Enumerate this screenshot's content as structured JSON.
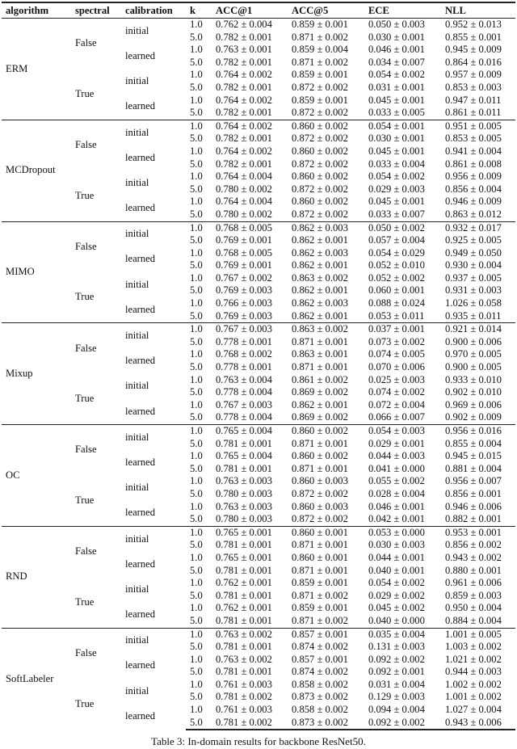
{
  "headers": [
    "algorithm",
    "spectral",
    "calibration",
    "k",
    "ACC@1",
    "ACC@5",
    "ECE",
    "NLL"
  ],
  "caption": "Table 3: In-domain results for backbone ResNet50.",
  "blocks": [
    {
      "algorithm": "ERM",
      "spectral": [
        {
          "value": "False",
          "calibration": [
            {
              "label": "initial",
              "rows": [
                [
                  "1.0",
                  "0.762 ± 0.004",
                  "0.859 ± 0.001",
                  "0.050 ± 0.003",
                  "0.952 ± 0.013"
                ],
                [
                  "5.0",
                  "0.782 ± 0.001",
                  "0.871 ± 0.002",
                  "0.030 ± 0.001",
                  "0.855 ± 0.001"
                ]
              ]
            },
            {
              "label": "learned",
              "rows": [
                [
                  "1.0",
                  "0.763 ± 0.001",
                  "0.859 ± 0.004",
                  "0.046 ± 0.001",
                  "0.945 ± 0.009"
                ],
                [
                  "5.0",
                  "0.782 ± 0.001",
                  "0.871 ± 0.002",
                  "0.034 ± 0.007",
                  "0.864 ± 0.016"
                ]
              ]
            }
          ]
        },
        {
          "value": "True",
          "calibration": [
            {
              "label": "initial",
              "rows": [
                [
                  "1.0",
                  "0.764 ± 0.002",
                  "0.859 ± 0.001",
                  "0.054 ± 0.002",
                  "0.957 ± 0.009"
                ],
                [
                  "5.0",
                  "0.782 ± 0.001",
                  "0.872 ± 0.002",
                  "0.031 ± 0.001",
                  "0.853 ± 0.003"
                ]
              ]
            },
            {
              "label": "learned",
              "rows": [
                [
                  "1.0",
                  "0.764 ± 0.002",
                  "0.859 ± 0.001",
                  "0.045 ± 0.001",
                  "0.947 ± 0.011"
                ],
                [
                  "5.0",
                  "0.782 ± 0.001",
                  "0.872 ± 0.002",
                  "0.033 ± 0.005",
                  "0.861 ± 0.011"
                ]
              ]
            }
          ]
        }
      ]
    },
    {
      "algorithm": "MCDropout",
      "spectral": [
        {
          "value": "False",
          "calibration": [
            {
              "label": "initial",
              "rows": [
                [
                  "1.0",
                  "0.764 ± 0.002",
                  "0.860 ± 0.002",
                  "0.054 ± 0.001",
                  "0.951 ± 0.005"
                ],
                [
                  "5.0",
                  "0.782 ± 0.001",
                  "0.872 ± 0.002",
                  "0.030 ± 0.001",
                  "0.853 ± 0.005"
                ]
              ]
            },
            {
              "label": "learned",
              "rows": [
                [
                  "1.0",
                  "0.764 ± 0.002",
                  "0.860 ± 0.002",
                  "0.045 ± 0.001",
                  "0.941 ± 0.004"
                ],
                [
                  "5.0",
                  "0.782 ± 0.001",
                  "0.872 ± 0.002",
                  "0.033 ± 0.004",
                  "0.861 ± 0.008"
                ]
              ]
            }
          ]
        },
        {
          "value": "True",
          "calibration": [
            {
              "label": "initial",
              "rows": [
                [
                  "1.0",
                  "0.764 ± 0.004",
                  "0.860 ± 0.002",
                  "0.054 ± 0.002",
                  "0.956 ± 0.009"
                ],
                [
                  "5.0",
                  "0.780 ± 0.002",
                  "0.872 ± 0.002",
                  "0.029 ± 0.003",
                  "0.856 ± 0.004"
                ]
              ]
            },
            {
              "label": "learned",
              "rows": [
                [
                  "1.0",
                  "0.764 ± 0.004",
                  "0.860 ± 0.002",
                  "0.045 ± 0.001",
                  "0.946 ± 0.009"
                ],
                [
                  "5.0",
                  "0.780 ± 0.002",
                  "0.872 ± 0.002",
                  "0.033 ± 0.007",
                  "0.863 ± 0.012"
                ]
              ]
            }
          ]
        }
      ]
    },
    {
      "algorithm": "MIMO",
      "spectral": [
        {
          "value": "False",
          "calibration": [
            {
              "label": "initial",
              "rows": [
                [
                  "1.0",
                  "0.768 ± 0.005",
                  "0.862 ± 0.003",
                  "0.050 ± 0.002",
                  "0.932 ± 0.017"
                ],
                [
                  "5.0",
                  "0.769 ± 0.001",
                  "0.862 ± 0.001",
                  "0.057 ± 0.004",
                  "0.925 ± 0.005"
                ]
              ]
            },
            {
              "label": "learned",
              "rows": [
                [
                  "1.0",
                  "0.768 ± 0.005",
                  "0.862 ± 0.003",
                  "0.054 ± 0.029",
                  "0.949 ± 0.050"
                ],
                [
                  "5.0",
                  "0.769 ± 0.001",
                  "0.862 ± 0.001",
                  "0.052 ± 0.010",
                  "0.930 ± 0.004"
                ]
              ]
            }
          ]
        },
        {
          "value": "True",
          "calibration": [
            {
              "label": "initial",
              "rows": [
                [
                  "1.0",
                  "0.767 ± 0.002",
                  "0.863 ± 0.002",
                  "0.052 ± 0.002",
                  "0.937 ± 0.005"
                ],
                [
                  "5.0",
                  "0.769 ± 0.003",
                  "0.862 ± 0.001",
                  "0.060 ± 0.001",
                  "0.931 ± 0.003"
                ]
              ]
            },
            {
              "label": "learned",
              "rows": [
                [
                  "1.0",
                  "0.766 ± 0.003",
                  "0.862 ± 0.003",
                  "0.088 ± 0.024",
                  "1.026 ± 0.058"
                ],
                [
                  "5.0",
                  "0.769 ± 0.003",
                  "0.862 ± 0.001",
                  "0.053 ± 0.011",
                  "0.935 ± 0.011"
                ]
              ]
            }
          ]
        }
      ]
    },
    {
      "algorithm": "Mixup",
      "spectral": [
        {
          "value": "False",
          "calibration": [
            {
              "label": "initial",
              "rows": [
                [
                  "1.0",
                  "0.767 ± 0.003",
                  "0.863 ± 0.002",
                  "0.037 ± 0.001",
                  "0.921 ± 0.014"
                ],
                [
                  "5.0",
                  "0.778 ± 0.001",
                  "0.871 ± 0.001",
                  "0.073 ± 0.002",
                  "0.900 ± 0.006"
                ]
              ]
            },
            {
              "label": "learned",
              "rows": [
                [
                  "1.0",
                  "0.768 ± 0.002",
                  "0.863 ± 0.001",
                  "0.074 ± 0.005",
                  "0.970 ± 0.005"
                ],
                [
                  "5.0",
                  "0.778 ± 0.001",
                  "0.871 ± 0.001",
                  "0.070 ± 0.006",
                  "0.900 ± 0.005"
                ]
              ]
            }
          ]
        },
        {
          "value": "True",
          "calibration": [
            {
              "label": "initial",
              "rows": [
                [
                  "1.0",
                  "0.763 ± 0.004",
                  "0.861 ± 0.002",
                  "0.025 ± 0.003",
                  "0.933 ± 0.010"
                ],
                [
                  "5.0",
                  "0.778 ± 0.004",
                  "0.869 ± 0.002",
                  "0.074 ± 0.002",
                  "0.902 ± 0.010"
                ]
              ]
            },
            {
              "label": "learned",
              "rows": [
                [
                  "1.0",
                  "0.767 ± 0.003",
                  "0.862 ± 0.001",
                  "0.072 ± 0.004",
                  "0.969 ± 0.006"
                ],
                [
                  "5.0",
                  "0.778 ± 0.004",
                  "0.869 ± 0.002",
                  "0.066 ± 0.007",
                  "0.902 ± 0.009"
                ]
              ]
            }
          ]
        }
      ]
    },
    {
      "algorithm": "OC",
      "spectral": [
        {
          "value": "False",
          "calibration": [
            {
              "label": "initial",
              "rows": [
                [
                  "1.0",
                  "0.765 ± 0.004",
                  "0.860 ± 0.002",
                  "0.054 ± 0.003",
                  "0.956 ± 0.016"
                ],
                [
                  "5.0",
                  "0.781 ± 0.001",
                  "0.871 ± 0.001",
                  "0.029 ± 0.001",
                  "0.855 ± 0.004"
                ]
              ]
            },
            {
              "label": "learned",
              "rows": [
                [
                  "1.0",
                  "0.765 ± 0.004",
                  "0.860 ± 0.002",
                  "0.044 ± 0.003",
                  "0.945 ± 0.015"
                ],
                [
                  "5.0",
                  "0.781 ± 0.001",
                  "0.871 ± 0.001",
                  "0.041 ± 0.000",
                  "0.881 ± 0.004"
                ]
              ]
            }
          ]
        },
        {
          "value": "True",
          "calibration": [
            {
              "label": "initial",
              "rows": [
                [
                  "1.0",
                  "0.763 ± 0.003",
                  "0.860 ± 0.003",
                  "0.055 ± 0.002",
                  "0.956 ± 0.007"
                ],
                [
                  "5.0",
                  "0.780 ± 0.003",
                  "0.872 ± 0.002",
                  "0.028 ± 0.004",
                  "0.856 ± 0.001"
                ]
              ]
            },
            {
              "label": "learned",
              "rows": [
                [
                  "1.0",
                  "0.763 ± 0.003",
                  "0.860 ± 0.003",
                  "0.046 ± 0.001",
                  "0.946 ± 0.006"
                ],
                [
                  "5.0",
                  "0.780 ± 0.003",
                  "0.872 ± 0.002",
                  "0.042 ± 0.001",
                  "0.882 ± 0.001"
                ]
              ]
            }
          ]
        }
      ]
    },
    {
      "algorithm": "RND",
      "spectral": [
        {
          "value": "False",
          "calibration": [
            {
              "label": "initial",
              "rows": [
                [
                  "1.0",
                  "0.765 ± 0.001",
                  "0.860 ± 0.001",
                  "0.053 ± 0.000",
                  "0.953 ± 0.001"
                ],
                [
                  "5.0",
                  "0.781 ± 0.001",
                  "0.871 ± 0.001",
                  "0.030 ± 0.003",
                  "0.856 ± 0.002"
                ]
              ]
            },
            {
              "label": "learned",
              "rows": [
                [
                  "1.0",
                  "0.765 ± 0.001",
                  "0.860 ± 0.001",
                  "0.044 ± 0.001",
                  "0.943 ± 0.002"
                ],
                [
                  "5.0",
                  "0.781 ± 0.001",
                  "0.871 ± 0.001",
                  "0.040 ± 0.001",
                  "0.880 ± 0.001"
                ]
              ]
            }
          ]
        },
        {
          "value": "True",
          "calibration": [
            {
              "label": "initial",
              "rows": [
                [
                  "1.0",
                  "0.762 ± 0.001",
                  "0.859 ± 0.001",
                  "0.054 ± 0.002",
                  "0.961 ± 0.006"
                ],
                [
                  "5.0",
                  "0.781 ± 0.001",
                  "0.871 ± 0.002",
                  "0.029 ± 0.002",
                  "0.859 ± 0.003"
                ]
              ]
            },
            {
              "label": "learned",
              "rows": [
                [
                  "1.0",
                  "0.762 ± 0.001",
                  "0.859 ± 0.001",
                  "0.045 ± 0.002",
                  "0.950 ± 0.004"
                ],
                [
                  "5.0",
                  "0.781 ± 0.001",
                  "0.871 ± 0.002",
                  "0.040 ± 0.000",
                  "0.884 ± 0.004"
                ]
              ]
            }
          ]
        }
      ]
    },
    {
      "algorithm": "SoftLabeler",
      "spectral": [
        {
          "value": "False",
          "calibration": [
            {
              "label": "initial",
              "rows": [
                [
                  "1.0",
                  "0.763 ± 0.002",
                  "0.857 ± 0.001",
                  "0.035 ± 0.004",
                  "1.001 ± 0.005"
                ],
                [
                  "5.0",
                  "0.781 ± 0.001",
                  "0.874 ± 0.002",
                  "0.131 ± 0.003",
                  "1.003 ± 0.002"
                ]
              ]
            },
            {
              "label": "learned",
              "rows": [
                [
                  "1.0",
                  "0.763 ± 0.002",
                  "0.857 ± 0.001",
                  "0.092 ± 0.002",
                  "1.021 ± 0.002"
                ],
                [
                  "5.0",
                  "0.781 ± 0.001",
                  "0.874 ± 0.002",
                  "0.092 ± 0.001",
                  "0.944 ± 0.003"
                ]
              ]
            }
          ]
        },
        {
          "value": "True",
          "calibration": [
            {
              "label": "initial",
              "rows": [
                [
                  "1.0",
                  "0.761 ± 0.003",
                  "0.858 ± 0.002",
                  "0.031 ± 0.004",
                  "1.002 ± 0.002"
                ],
                [
                  "5.0",
                  "0.781 ± 0.002",
                  "0.873 ± 0.002",
                  "0.129 ± 0.003",
                  "1.001 ± 0.002"
                ]
              ]
            },
            {
              "label": "learned",
              "rows": [
                [
                  "1.0",
                  "0.761 ± 0.003",
                  "0.858 ± 0.002",
                  "0.094 ± 0.004",
                  "1.027 ± 0.004"
                ],
                [
                  "5.0",
                  "0.781 ± 0.002",
                  "0.873 ± 0.002",
                  "0.092 ± 0.002",
                  "0.943 ± 0.006"
                ]
              ]
            }
          ]
        }
      ]
    }
  ]
}
